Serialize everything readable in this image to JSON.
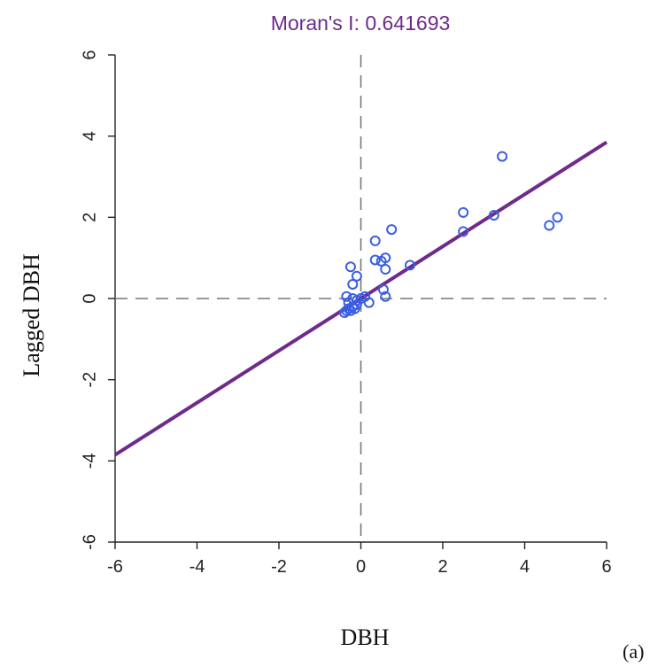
{
  "chart_data": {
    "type": "scatter",
    "title": "Moran's I: 0.641693",
    "xlabel": "DBH",
    "ylabel": "Lagged DBH",
    "panel_label": "(a)",
    "xlim": [
      -6,
      6
    ],
    "ylim": [
      -6,
      6
    ],
    "xticks": [
      -6,
      -4,
      -2,
      0,
      2,
      4,
      6
    ],
    "yticks": [
      -6,
      -4,
      -2,
      0,
      2,
      4,
      6
    ],
    "reference_lines": {
      "x": 0,
      "y": 0,
      "style": "dashed"
    },
    "regression_line": {
      "slope": 0.641693,
      "intercept": 0,
      "color": "#6e2a8c"
    },
    "point_color": "#3a5fe0",
    "series": [
      {
        "points": [
          [
            -0.4,
            -0.35
          ],
          [
            -0.35,
            -0.3
          ],
          [
            -0.3,
            -0.25
          ],
          [
            -0.25,
            -0.3
          ],
          [
            -0.2,
            -0.2
          ],
          [
            -0.15,
            -0.25
          ],
          [
            -0.1,
            -0.15
          ],
          [
            -0.3,
            -0.1
          ],
          [
            -0.35,
            0.05
          ],
          [
            -0.2,
            0.0
          ],
          [
            -0.1,
            -0.05
          ],
          [
            0.0,
            0.0
          ],
          [
            0.1,
            0.05
          ],
          [
            0.2,
            -0.1
          ],
          [
            -0.25,
            0.78
          ],
          [
            -0.2,
            0.35
          ],
          [
            -0.1,
            0.55
          ],
          [
            0.35,
            1.42
          ],
          [
            0.35,
            0.95
          ],
          [
            0.5,
            0.92
          ],
          [
            0.6,
            1.0
          ],
          [
            0.6,
            0.72
          ],
          [
            0.75,
            1.7
          ],
          [
            0.55,
            0.22
          ],
          [
            0.6,
            0.05
          ],
          [
            1.2,
            0.82
          ],
          [
            2.5,
            2.12
          ],
          [
            2.5,
            1.65
          ],
          [
            3.25,
            2.05
          ],
          [
            3.45,
            3.5
          ],
          [
            4.6,
            1.8
          ],
          [
            4.8,
            2.0
          ]
        ]
      }
    ],
    "grid": false,
    "legend": "none"
  }
}
